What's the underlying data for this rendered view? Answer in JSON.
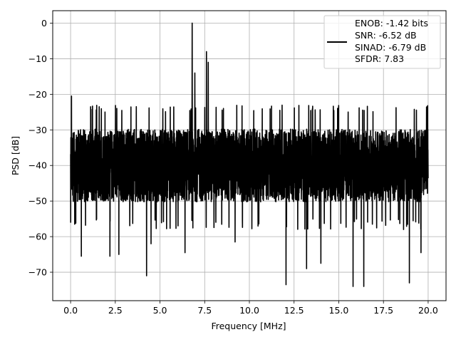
{
  "chart_data": {
    "type": "line",
    "xlabel": "Frequency [MHz]",
    "ylabel": "PSD [dB]",
    "xlim": [
      -1.0,
      21.0
    ],
    "ylim": [
      -78.0,
      3.5
    ],
    "xticks": [
      0.0,
      2.5,
      5.0,
      7.5,
      10.0,
      12.5,
      15.0,
      17.5,
      20.0
    ],
    "xtick_labels": [
      "0.0",
      "2.5",
      "5.0",
      "7.5",
      "10.0",
      "12.5",
      "15.0",
      "17.5",
      "20.0"
    ],
    "yticks": [
      0,
      -10,
      -20,
      -30,
      -40,
      -50,
      -60,
      -70
    ],
    "ytick_labels": [
      "0",
      "−10",
      "−20",
      "−30",
      "−40",
      "−50",
      "−60",
      "−70"
    ],
    "grid": true,
    "legend_position": "top-right",
    "legend_lines": [
      "ENOB: -1.42 bits",
      "SNR: -6.52 dB",
      "SINAD: -6.79 dB",
      "SFDR: 7.83"
    ],
    "series": [
      {
        "color": "#000000",
        "noise_floor_db": -40,
        "noise_range_db": [
          -58,
          -25
        ],
        "peaks": [
          {
            "x": 0.05,
            "y": -20.5
          },
          {
            "x": 1.6,
            "y": -23.5
          },
          {
            "x": 6.8,
            "y": 0.0
          },
          {
            "x": 6.95,
            "y": -14.0
          },
          {
            "x": 7.6,
            "y": -8.0
          },
          {
            "x": 7.7,
            "y": -11.0
          }
        ],
        "dips": [
          {
            "x": 0.6,
            "y": -65.5
          },
          {
            "x": 2.2,
            "y": -65.5
          },
          {
            "x": 2.7,
            "y": -65.0
          },
          {
            "x": 4.25,
            "y": -71.0
          },
          {
            "x": 4.5,
            "y": -62.0
          },
          {
            "x": 6.4,
            "y": -64.5
          },
          {
            "x": 9.2,
            "y": -61.5
          },
          {
            "x": 12.05,
            "y": -73.5
          },
          {
            "x": 13.2,
            "y": -69.0
          },
          {
            "x": 14.0,
            "y": -67.5
          },
          {
            "x": 15.8,
            "y": -74.0
          },
          {
            "x": 16.4,
            "y": -74.0
          },
          {
            "x": 18.95,
            "y": -73.0
          },
          {
            "x": 19.6,
            "y": -64.5
          }
        ]
      }
    ]
  }
}
